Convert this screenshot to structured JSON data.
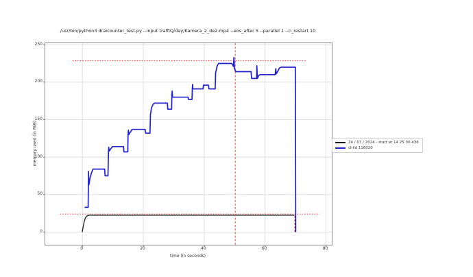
{
  "chart_data": {
    "type": "line",
    "title": "/usr/bin/python3 draicounter_test.py --input traffiQ/day/Kamera_2_de2.mp4 --eos_after 5 --parallel 1 --n_restart 10",
    "xlabel": "time (in seconds)",
    "ylabel": "memory used (in MiB)",
    "xlim": [
      -12.2,
      81.9
    ],
    "ylim": [
      -17,
      252
    ],
    "xticks": [
      0,
      20,
      40,
      60,
      80
    ],
    "yticks": [
      0,
      50,
      100,
      150,
      200,
      250
    ],
    "grid": true,
    "legend_position": "right-of-axes",
    "series": [
      {
        "name": "24 / 07 / 2024 - start at 14 25 30.436",
        "color": "#1a1a1a",
        "points": [
          [
            -0.05,
            0
          ],
          [
            0.25,
            7
          ],
          [
            0.6,
            14
          ],
          [
            1.0,
            19
          ],
          [
            1.5,
            21.5
          ],
          [
            2.3,
            22.5
          ],
          [
            69.6,
            22.5
          ]
        ]
      },
      {
        "name": "child 116020",
        "color": "#2222cc",
        "points": [
          [
            0.75,
            33
          ],
          [
            1.9,
            33
          ],
          [
            1.95,
            62
          ],
          [
            2.0,
            81
          ],
          [
            2.15,
            63
          ],
          [
            2.5,
            72
          ],
          [
            3.0,
            79
          ],
          [
            3.5,
            84
          ],
          [
            7.3,
            84
          ],
          [
            7.45,
            75
          ],
          [
            8.4,
            75
          ],
          [
            8.55,
            107
          ],
          [
            8.65,
            113
          ],
          [
            8.8,
            108
          ],
          [
            9.3,
            111
          ],
          [
            9.9,
            114
          ],
          [
            13.5,
            114
          ],
          [
            13.65,
            107
          ],
          [
            14.9,
            107
          ],
          [
            15.0,
            130
          ],
          [
            15.1,
            136
          ],
          [
            15.25,
            130
          ],
          [
            15.7,
            133
          ],
          [
            16.3,
            137
          ],
          [
            20.6,
            137
          ],
          [
            20.75,
            132
          ],
          [
            22.2,
            132
          ],
          [
            22.35,
            157
          ],
          [
            22.7,
            166
          ],
          [
            23.2,
            170
          ],
          [
            23.6,
            172
          ],
          [
            27.9,
            172
          ],
          [
            28.05,
            164
          ],
          [
            29.3,
            164
          ],
          [
            29.4,
            184
          ],
          [
            29.5,
            188
          ],
          [
            29.6,
            180
          ],
          [
            34.7,
            180
          ],
          [
            34.85,
            177
          ],
          [
            36.0,
            177
          ],
          [
            36.1,
            193
          ],
          [
            36.2,
            197
          ],
          [
            36.3,
            191
          ],
          [
            39.6,
            191
          ],
          [
            39.75,
            196
          ],
          [
            41.4,
            196
          ],
          [
            41.55,
            191
          ],
          [
            43.6,
            191
          ],
          [
            43.75,
            212
          ],
          [
            44.2,
            221
          ],
          [
            44.7,
            225
          ],
          [
            49.0,
            225
          ],
          [
            49.6,
            221
          ],
          [
            49.75,
            233
          ],
          [
            49.95,
            218
          ],
          [
            50.35,
            214
          ],
          [
            55.4,
            214
          ],
          [
            55.55,
            205
          ],
          [
            57.2,
            205
          ],
          [
            57.3,
            222
          ],
          [
            57.45,
            205
          ],
          [
            57.9,
            209
          ],
          [
            58.4,
            210
          ],
          [
            63.3,
            210
          ],
          [
            63.5,
            218
          ],
          [
            63.65,
            211
          ],
          [
            64.1,
            214
          ],
          [
            64.7,
            219
          ],
          [
            65.3,
            220
          ],
          [
            69.95,
            220
          ],
          [
            70.05,
            0
          ]
        ]
      }
    ],
    "hlines": [
      {
        "y": 228.6,
        "x0": -3.2,
        "x1": 73.8,
        "color": "#ff4040",
        "style": "dotted"
      },
      {
        "y": 24.0,
        "x0": -7.3,
        "x1": 77.9,
        "color": "#ff4040",
        "style": "dotted"
      }
    ],
    "vlines": [
      {
        "x": 50.2,
        "y0": -17,
        "y1": 252,
        "color": "#ff4040",
        "style": "dashed"
      },
      {
        "x": 69.8,
        "y0": 0,
        "y1": 24,
        "color": "#8b0000",
        "style": "dashed"
      }
    ]
  },
  "colors": {
    "grid": "#dcdcdc",
    "spine": "#8a8a8a",
    "tick": "#666666"
  }
}
